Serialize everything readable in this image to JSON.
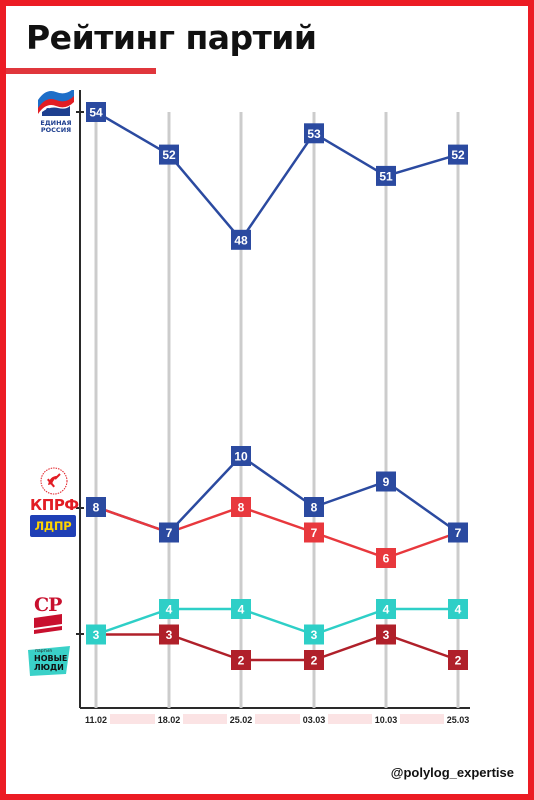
{
  "header": {
    "title": "Рейтинг партий"
  },
  "footer": {
    "handle": "@polylog_expertise"
  },
  "logos": {
    "er": {
      "line1": "ЕДИНАЯ",
      "line2": "РОССИЯ",
      "color": "#1e3f8f"
    },
    "kprf": {
      "text": "КПРФ",
      "color": "#e21d24"
    },
    "ldpr": {
      "text": "ЛДПР",
      "color": "#1f3fb5",
      "text_color": "#ffd400"
    },
    "sr": {
      "text": "СР",
      "color": "#c8102e"
    },
    "nl": {
      "small": "партия",
      "line1": "НОВЫЕ",
      "line2": "ЛЮДИ",
      "color": "#3ad1c8"
    }
  },
  "chart_data": {
    "type": "line",
    "title": "Рейтинг партий",
    "categories": [
      "11.02",
      "18.02",
      "25.02",
      "03.03",
      "10.03",
      "25.03"
    ],
    "series": [
      {
        "party": "er",
        "color": "#2b4aa0",
        "values": [
          54,
          52,
          48,
          53,
          51,
          52
        ]
      },
      {
        "party": "ldpr",
        "color": "#2b4aa0",
        "values": [
          8,
          7,
          10,
          8,
          9,
          7
        ]
      },
      {
        "party": "kprf",
        "color": "#e8383d",
        "values": [
          8,
          7,
          8,
          7,
          6,
          7
        ]
      },
      {
        "party": "nl",
        "color": "#2ecfc7",
        "values": [
          3,
          4,
          4,
          3,
          4,
          4
        ]
      },
      {
        "party": "sr",
        "color": "#b0202a",
        "values": [
          3,
          3,
          2,
          2,
          3,
          2
        ]
      }
    ],
    "grid": "vertical lines at each date",
    "legend": "party logos on the left"
  }
}
